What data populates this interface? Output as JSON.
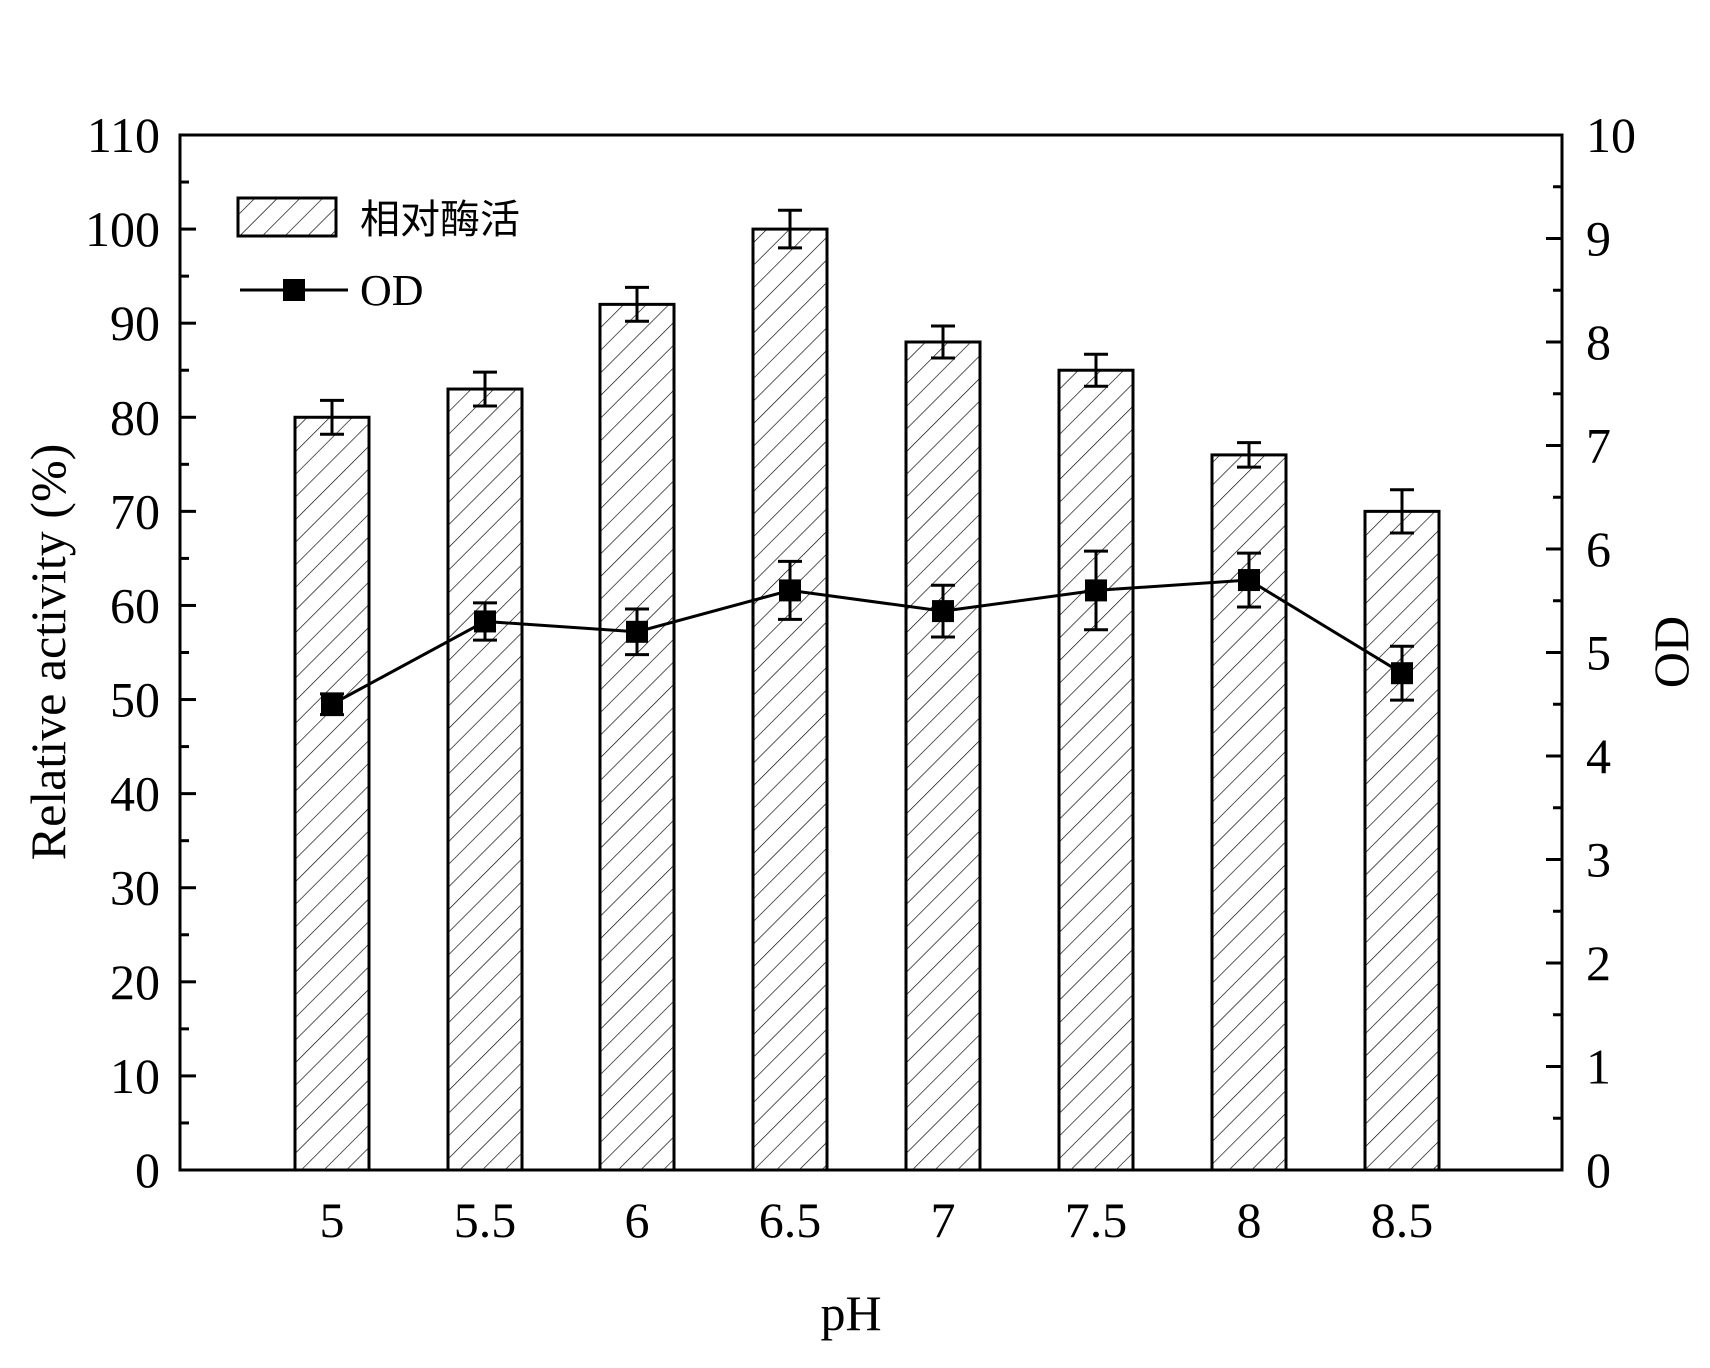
{
  "chart_data": {
    "type": "bar",
    "categories": [
      "5",
      "5.5",
      "6",
      "6.5",
      "7",
      "7.5",
      "8",
      "8.5"
    ],
    "series": [
      {
        "name": "相对酶活",
        "type": "bar",
        "axis": "left",
        "values": [
          80,
          83,
          92,
          100,
          88,
          85,
          76,
          70
        ],
        "errors": [
          1.8,
          1.8,
          1.8,
          2.0,
          1.7,
          1.7,
          1.3,
          2.3
        ],
        "pattern": "diagonal-hatch"
      },
      {
        "name": "OD",
        "type": "line",
        "axis": "right",
        "marker": "square",
        "values": [
          4.5,
          5.3,
          5.2,
          5.6,
          5.4,
          5.6,
          5.7,
          4.8
        ],
        "errors": [
          0.1,
          0.18,
          0.22,
          0.28,
          0.25,
          0.38,
          0.26,
          0.26
        ]
      }
    ],
    "xlabel": "pH",
    "ylabel": "Relative activity (%)",
    "y2label": "OD",
    "ylim": [
      0,
      110
    ],
    "y2lim": [
      0,
      10
    ],
    "yticks": [
      "0",
      "10",
      "20",
      "30",
      "40",
      "50",
      "60",
      "70",
      "80",
      "90",
      "100",
      "110"
    ],
    "y2ticks": [
      "0",
      "1",
      "2",
      "3",
      "4",
      "5",
      "6",
      "7",
      "8",
      "9",
      "10"
    ],
    "grid": false,
    "legend_position": "top-left",
    "colors": {
      "line": "#000000",
      "bar_fill": "#ffffff",
      "hatch": "#000000"
    }
  }
}
